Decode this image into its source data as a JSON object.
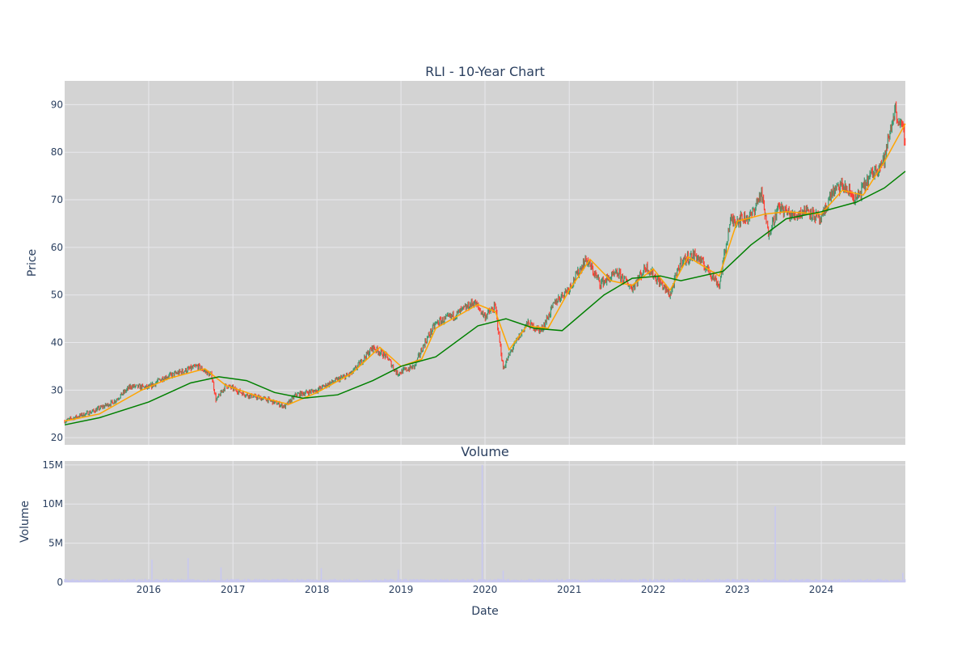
{
  "chart_data": [
    {
      "type": "candlestick",
      "title": "RLI - 10-Year Chart",
      "xlabel": "",
      "ylabel": "Price",
      "x_range": [
        "2015-01-01",
        "2024-12-31"
      ],
      "ylim": [
        18.5,
        95
      ],
      "y_ticks": [
        20,
        30,
        40,
        50,
        60,
        70,
        80,
        90
      ],
      "x_tick_labels": [
        "2016",
        "2017",
        "2018",
        "2019",
        "2020",
        "2021",
        "2022",
        "2023",
        "2024"
      ],
      "grid": true,
      "colors": {
        "up": "#3d9970",
        "down": "#ff4136",
        "short_ma": "#ffa500",
        "long_ma": "#008000",
        "plot_bg": "#d3d3d3",
        "grid": "#e8e8ec"
      },
      "anchor_points": [
        {
          "date": "2015-01-01",
          "close": 23.5
        },
        {
          "date": "2015-03-01",
          "close": 24.5
        },
        {
          "date": "2015-05-01",
          "close": 25.5
        },
        {
          "date": "2015-08-01",
          "close": 27.5
        },
        {
          "date": "2015-10-15",
          "close": 30.8
        },
        {
          "date": "2016-01-01",
          "close": 30.5
        },
        {
          "date": "2016-03-01",
          "close": 32.5
        },
        {
          "date": "2016-05-01",
          "close": 33.5
        },
        {
          "date": "2016-08-01",
          "close": 35.0
        },
        {
          "date": "2016-10-01",
          "close": 33.0
        },
        {
          "date": "2016-10-20",
          "close": 27.8
        },
        {
          "date": "2016-12-01",
          "close": 31.0
        },
        {
          "date": "2017-03-01",
          "close": 29.0
        },
        {
          "date": "2017-06-01",
          "close": 28.0
        },
        {
          "date": "2017-08-15",
          "close": 26.5
        },
        {
          "date": "2017-10-01",
          "close": 29.0
        },
        {
          "date": "2018-01-01",
          "close": 30.0
        },
        {
          "date": "2018-03-01",
          "close": 31.5
        },
        {
          "date": "2018-06-01",
          "close": 33.5
        },
        {
          "date": "2018-09-01",
          "close": 39.0
        },
        {
          "date": "2018-11-01",
          "close": 37.0
        },
        {
          "date": "2018-12-15",
          "close": 33.5
        },
        {
          "date": "2019-03-01",
          "close": 35.0
        },
        {
          "date": "2019-04-15",
          "close": 40.0
        },
        {
          "date": "2019-06-01",
          "close": 44.0
        },
        {
          "date": "2019-09-01",
          "close": 46.0
        },
        {
          "date": "2019-11-15",
          "close": 48.5
        },
        {
          "date": "2019-12-31",
          "close": 45.5
        },
        {
          "date": "2020-02-15",
          "close": 47.5
        },
        {
          "date": "2020-03-20",
          "close": 34.5
        },
        {
          "date": "2020-05-01",
          "close": 39.0
        },
        {
          "date": "2020-07-01",
          "close": 44.0
        },
        {
          "date": "2020-09-01",
          "close": 42.5
        },
        {
          "date": "2020-11-01",
          "close": 48.5
        },
        {
          "date": "2021-01-01",
          "close": 51.5
        },
        {
          "date": "2021-03-15",
          "close": 57.5
        },
        {
          "date": "2021-05-15",
          "close": 52.5
        },
        {
          "date": "2021-08-01",
          "close": 54.5
        },
        {
          "date": "2021-10-01",
          "close": 51.5
        },
        {
          "date": "2021-12-01",
          "close": 56.0
        },
        {
          "date": "2022-02-01",
          "close": 52.5
        },
        {
          "date": "2022-03-15",
          "close": 50.0
        },
        {
          "date": "2022-05-01",
          "close": 57.0
        },
        {
          "date": "2022-07-01",
          "close": 58.5
        },
        {
          "date": "2022-09-01",
          "close": 55.0
        },
        {
          "date": "2022-10-15",
          "close": 52.0
        },
        {
          "date": "2022-12-01",
          "close": 65.5
        },
        {
          "date": "2023-03-01",
          "close": 66.5
        },
        {
          "date": "2023-04-15",
          "close": 71.5
        },
        {
          "date": "2023-05-15",
          "close": 63.0
        },
        {
          "date": "2023-07-01",
          "close": 68.5
        },
        {
          "date": "2023-09-01",
          "close": 66.5
        },
        {
          "date": "2023-11-01",
          "close": 68.0
        },
        {
          "date": "2023-12-31",
          "close": 65.5
        },
        {
          "date": "2024-02-15",
          "close": 71.5
        },
        {
          "date": "2024-04-01",
          "close": 73.0
        },
        {
          "date": "2024-06-01",
          "close": 70.0
        },
        {
          "date": "2024-08-01",
          "close": 75.0
        },
        {
          "date": "2024-10-01",
          "close": 78.5
        },
        {
          "date": "2024-11-15",
          "close": 89.0
        },
        {
          "date": "2024-12-31",
          "close": 83.0
        }
      ],
      "moving_averages": [
        {
          "name": "short",
          "color": "#ffa500",
          "points": [
            {
              "date": "2015-01-01",
              "value": 23.5
            },
            {
              "date": "2015-06-01",
              "value": 25.0
            },
            {
              "date": "2015-12-01",
              "value": 30.0
            },
            {
              "date": "2016-04-01",
              "value": 32.5
            },
            {
              "date": "2016-09-01",
              "value": 34.5
            },
            {
              "date": "2016-12-01",
              "value": 31.0
            },
            {
              "date": "2017-05-01",
              "value": 28.5
            },
            {
              "date": "2017-09-01",
              "value": 27.0
            },
            {
              "date": "2018-01-01",
              "value": 29.5
            },
            {
              "date": "2018-06-01",
              "value": 33.5
            },
            {
              "date": "2018-10-01",
              "value": 39.0
            },
            {
              "date": "2019-01-01",
              "value": 35.0
            },
            {
              "date": "2019-04-01",
              "value": 36.5
            },
            {
              "date": "2019-06-01",
              "value": 43.0
            },
            {
              "date": "2019-12-01",
              "value": 48.0
            },
            {
              "date": "2020-02-15",
              "value": 46.5
            },
            {
              "date": "2020-04-15",
              "value": 38.5
            },
            {
              "date": "2020-07-01",
              "value": 43.5
            },
            {
              "date": "2020-10-01",
              "value": 43.0
            },
            {
              "date": "2021-01-01",
              "value": 51.0
            },
            {
              "date": "2021-04-01",
              "value": 57.5
            },
            {
              "date": "2021-07-01",
              "value": 53.0
            },
            {
              "date": "2021-10-01",
              "value": 52.0
            },
            {
              "date": "2022-01-01",
              "value": 55.5
            },
            {
              "date": "2022-03-15",
              "value": 51.0
            },
            {
              "date": "2022-06-01",
              "value": 58.0
            },
            {
              "date": "2022-10-15",
              "value": 54.0
            },
            {
              "date": "2023-01-01",
              "value": 65.5
            },
            {
              "date": "2023-05-01",
              "value": 67.0
            },
            {
              "date": "2023-08-01",
              "value": 67.5
            },
            {
              "date": "2024-01-01",
              "value": 67.0
            },
            {
              "date": "2024-04-01",
              "value": 72.0
            },
            {
              "date": "2024-07-01",
              "value": 71.0
            },
            {
              "date": "2024-10-01",
              "value": 78.0
            },
            {
              "date": "2024-12-31",
              "value": 86.0
            }
          ]
        },
        {
          "name": "long",
          "color": "#008000",
          "points": [
            {
              "date": "2015-01-01",
              "value": 22.7
            },
            {
              "date": "2015-06-01",
              "value": 24.2
            },
            {
              "date": "2016-01-01",
              "value": 27.5
            },
            {
              "date": "2016-07-01",
              "value": 31.5
            },
            {
              "date": "2016-11-01",
              "value": 32.8
            },
            {
              "date": "2017-03-01",
              "value": 32.0
            },
            {
              "date": "2017-07-01",
              "value": 29.5
            },
            {
              "date": "2017-11-01",
              "value": 28.3
            },
            {
              "date": "2018-04-01",
              "value": 29.0
            },
            {
              "date": "2018-09-01",
              "value": 32.0
            },
            {
              "date": "2019-01-01",
              "value": 35.0
            },
            {
              "date": "2019-06-01",
              "value": 37.0
            },
            {
              "date": "2019-12-01",
              "value": 43.5
            },
            {
              "date": "2020-04-01",
              "value": 45.0
            },
            {
              "date": "2020-08-01",
              "value": 43.0
            },
            {
              "date": "2020-12-01",
              "value": 42.5
            },
            {
              "date": "2021-06-01",
              "value": 50.0
            },
            {
              "date": "2021-10-01",
              "value": 53.5
            },
            {
              "date": "2022-02-01",
              "value": 54.0
            },
            {
              "date": "2022-05-01",
              "value": 53.0
            },
            {
              "date": "2022-11-01",
              "value": 55.0
            },
            {
              "date": "2023-03-01",
              "value": 60.5
            },
            {
              "date": "2023-08-01",
              "value": 66.0
            },
            {
              "date": "2024-01-01",
              "value": 67.5
            },
            {
              "date": "2024-06-01",
              "value": 69.5
            },
            {
              "date": "2024-10-01",
              "value": 72.5
            },
            {
              "date": "2024-12-31",
              "value": 76.0
            }
          ]
        }
      ]
    },
    {
      "type": "bar",
      "title": "Volume",
      "xlabel": "Date",
      "ylabel": "Volume",
      "x_range": [
        "2015-01-01",
        "2024-12-31"
      ],
      "ylim": [
        0,
        15500000
      ],
      "y_ticks": [
        0,
        5000000,
        10000000,
        15000000
      ],
      "y_tick_labels": [
        "0",
        "5M",
        "10M",
        "15M"
      ],
      "x_tick_labels": [
        "2016",
        "2017",
        "2018",
        "2019",
        "2020",
        "2021",
        "2022",
        "2023",
        "2024"
      ],
      "grid": true,
      "bar_color": "#c8c8f0",
      "base_volume": 280000,
      "spikes": [
        {
          "date": "2016-01-15",
          "volume": 2900000
        },
        {
          "date": "2016-06-20",
          "volume": 3100000
        },
        {
          "date": "2016-11-10",
          "volume": 1900000
        },
        {
          "date": "2018-01-20",
          "volume": 1800000
        },
        {
          "date": "2018-12-20",
          "volume": 1600000
        },
        {
          "date": "2019-12-20",
          "volume": 15000000
        },
        {
          "date": "2020-03-20",
          "volume": 1500000
        },
        {
          "date": "2023-06-15",
          "volume": 9700000
        },
        {
          "date": "2024-12-20",
          "volume": 1200000
        }
      ]
    }
  ]
}
